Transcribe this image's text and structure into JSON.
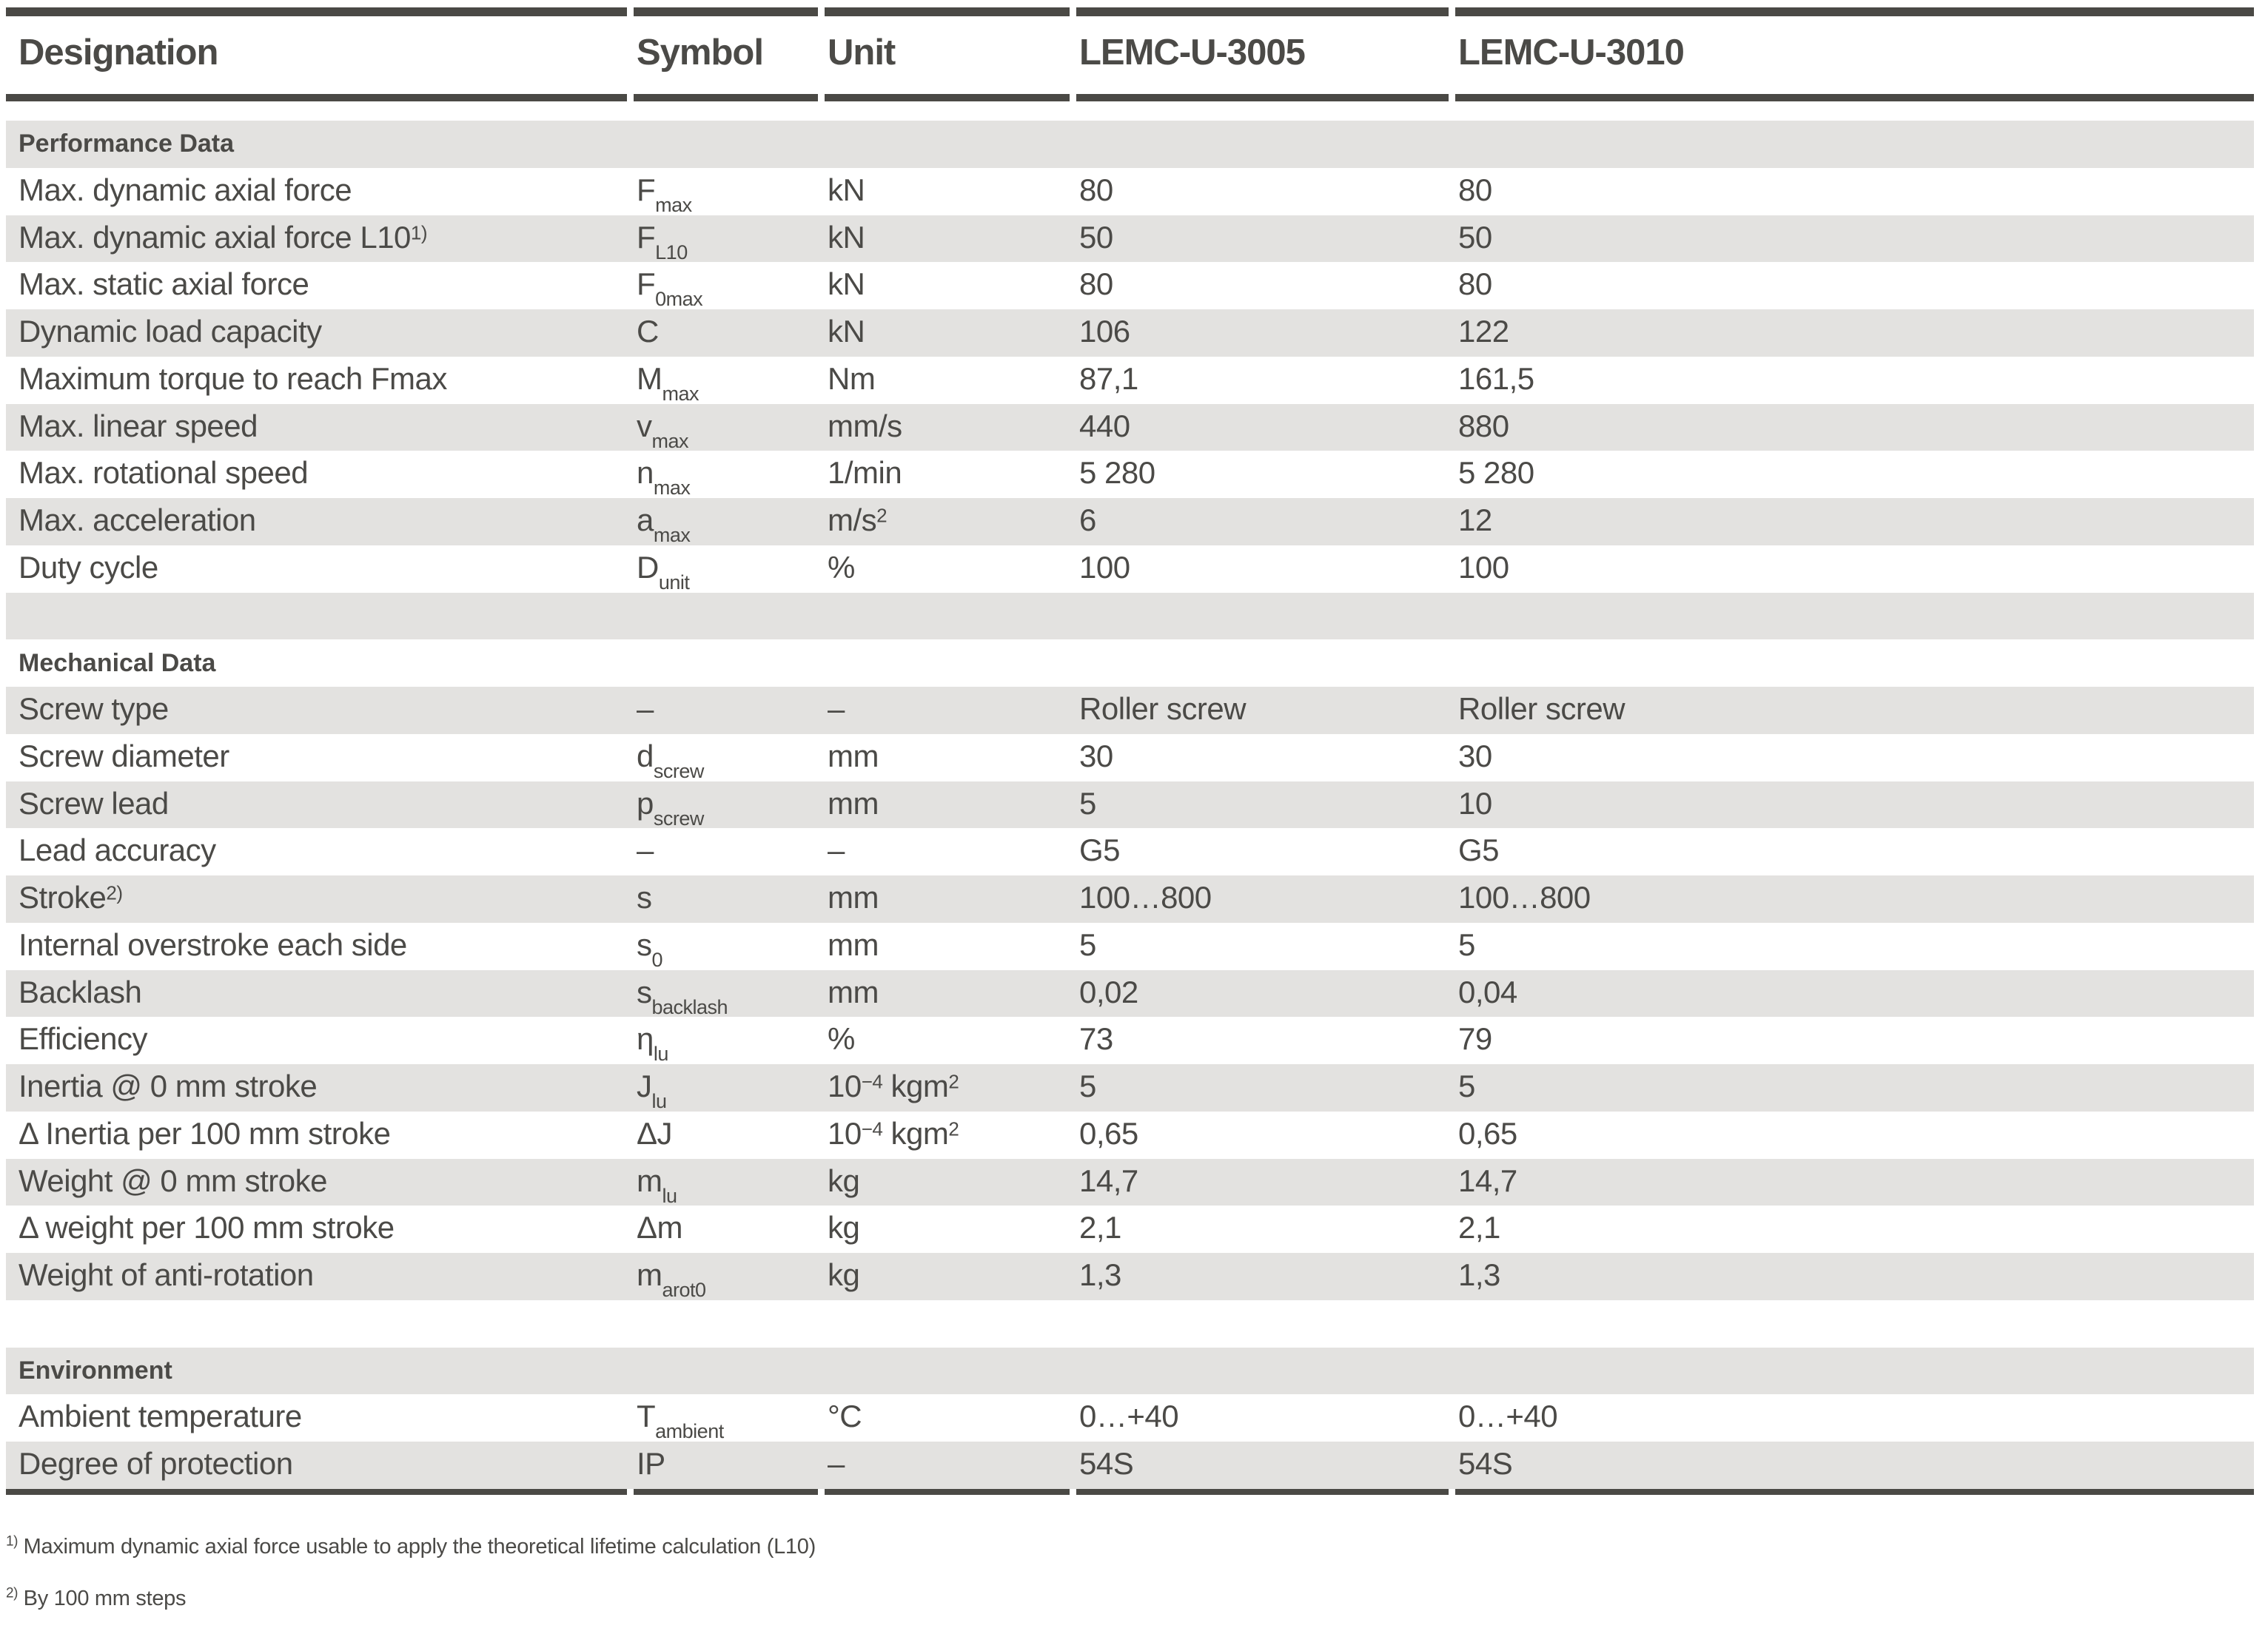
{
  "colors": {
    "rule_dark": "#4a4945",
    "row_stripe": "#e3e2e0",
    "text": "#4b4a47"
  },
  "table": {
    "columns": [
      "Designation",
      "Symbol",
      "Unit",
      "LEMC-U-3005",
      "LEMC-U-3010"
    ],
    "sections": [
      {
        "title": "Performance Data",
        "rows": [
          {
            "designation": [
              "Max. dynamic axial force"
            ],
            "symbol": [
              "F",
              {
                "sub": "max"
              }
            ],
            "unit": [
              "kN"
            ],
            "v1": [
              "80"
            ],
            "v2": [
              "80"
            ]
          },
          {
            "designation": [
              "Max. dynamic axial force L10",
              {
                "sup": "1)"
              }
            ],
            "symbol": [
              "F",
              {
                "sub": "L10"
              }
            ],
            "unit": [
              "kN"
            ],
            "v1": [
              "50"
            ],
            "v2": [
              "50"
            ]
          },
          {
            "designation": [
              "Max. static axial force"
            ],
            "symbol": [
              "F",
              {
                "sub": "0max"
              }
            ],
            "unit": [
              "kN"
            ],
            "v1": [
              "80"
            ],
            "v2": [
              "80"
            ]
          },
          {
            "designation": [
              "Dynamic load capacity"
            ],
            "symbol": [
              "C"
            ],
            "unit": [
              "kN"
            ],
            "v1": [
              "106"
            ],
            "v2": [
              "122"
            ]
          },
          {
            "designation": [
              "Maximum torque to reach Fmax"
            ],
            "symbol": [
              "M",
              {
                "sub": "max"
              }
            ],
            "unit": [
              "Nm"
            ],
            "v1": [
              "87,1"
            ],
            "v2": [
              "161,5"
            ]
          },
          {
            "designation": [
              "Max. linear speed"
            ],
            "symbol": [
              "v",
              {
                "sub": "max"
              }
            ],
            "unit": [
              "mm/s"
            ],
            "v1": [
              "440"
            ],
            "v2": [
              "880"
            ]
          },
          {
            "designation": [
              "Max. rotational speed"
            ],
            "symbol": [
              "n",
              {
                "sub": "max"
              }
            ],
            "unit": [
              "1/min"
            ],
            "v1": [
              "5 280"
            ],
            "v2": [
              "5 280"
            ]
          },
          {
            "designation": [
              "Max. acceleration"
            ],
            "symbol": [
              "a",
              {
                "sub": "max"
              }
            ],
            "unit": [
              "m/s",
              {
                "sup": "2"
              }
            ],
            "v1": [
              "6"
            ],
            "v2": [
              "12"
            ]
          },
          {
            "designation": [
              "Duty cycle"
            ],
            "symbol": [
              "D",
              {
                "sub": "unit"
              }
            ],
            "unit": [
              "%"
            ],
            "v1": [
              "100"
            ],
            "v2": [
              "100"
            ]
          }
        ]
      },
      {
        "title": "Mechanical Data",
        "rows": [
          {
            "designation": [
              "Screw type"
            ],
            "symbol": [
              "–"
            ],
            "unit": [
              "–"
            ],
            "v1": [
              "Roller screw"
            ],
            "v2": [
              "Roller screw"
            ]
          },
          {
            "designation": [
              "Screw diameter"
            ],
            "symbol": [
              "d",
              {
                "sub": "screw"
              }
            ],
            "unit": [
              "mm"
            ],
            "v1": [
              "30"
            ],
            "v2": [
              "30"
            ]
          },
          {
            "designation": [
              "Screw lead"
            ],
            "symbol": [
              "p",
              {
                "sub": "screw"
              }
            ],
            "unit": [
              "mm"
            ],
            "v1": [
              "5"
            ],
            "v2": [
              "10"
            ]
          },
          {
            "designation": [
              "Lead accuracy"
            ],
            "symbol": [
              "–"
            ],
            "unit": [
              "–"
            ],
            "v1": [
              "G5"
            ],
            "v2": [
              "G5"
            ]
          },
          {
            "designation": [
              "Stroke",
              {
                "sup": "2)"
              }
            ],
            "symbol": [
              "s"
            ],
            "unit": [
              "mm"
            ],
            "v1": [
              "100…800"
            ],
            "v2": [
              "100…800"
            ]
          },
          {
            "designation": [
              "Internal overstroke each side"
            ],
            "symbol": [
              "s",
              {
                "sub": "0"
              }
            ],
            "unit": [
              "mm"
            ],
            "v1": [
              "5"
            ],
            "v2": [
              "5"
            ]
          },
          {
            "designation": [
              "Backlash"
            ],
            "symbol": [
              "s",
              {
                "sub": "backlash"
              }
            ],
            "unit": [
              "mm"
            ],
            "v1": [
              "0,02"
            ],
            "v2": [
              "0,04"
            ]
          },
          {
            "designation": [
              "Efficiency"
            ],
            "symbol": [
              "η",
              {
                "sub": "lu"
              }
            ],
            "unit": [
              "%"
            ],
            "v1": [
              "73"
            ],
            "v2": [
              "79"
            ]
          },
          {
            "designation": [
              "Inertia @ 0 mm stroke"
            ],
            "symbol": [
              "J",
              {
                "sub": "lu"
              }
            ],
            "unit": [
              "10",
              {
                "sup": "−4"
              },
              " kgm",
              {
                "sup": "2"
              }
            ],
            "v1": [
              "5"
            ],
            "v2": [
              "5"
            ]
          },
          {
            "designation": [
              "Δ Inertia per 100 mm stroke"
            ],
            "symbol": [
              "ΔJ"
            ],
            "unit": [
              "10",
              {
                "sup": "−4"
              },
              " kgm",
              {
                "sup": "2"
              }
            ],
            "v1": [
              "0,65"
            ],
            "v2": [
              "0,65"
            ]
          },
          {
            "designation": [
              "Weight @ 0 mm stroke"
            ],
            "symbol": [
              "m",
              {
                "sub": "lu"
              }
            ],
            "unit": [
              "kg"
            ],
            "v1": [
              "14,7"
            ],
            "v2": [
              "14,7"
            ]
          },
          {
            "designation": [
              "Δ weight per 100 mm stroke"
            ],
            "symbol": [
              "Δm"
            ],
            "unit": [
              "kg"
            ],
            "v1": [
              "2,1"
            ],
            "v2": [
              "2,1"
            ]
          },
          {
            "designation": [
              "Weight of anti-rotation"
            ],
            "symbol": [
              "m",
              {
                "sub": "arot0"
              }
            ],
            "unit": [
              "kg"
            ],
            "v1": [
              "1,3"
            ],
            "v2": [
              "1,3"
            ]
          }
        ]
      },
      {
        "title": "Environment",
        "rows": [
          {
            "designation": [
              "Ambient temperature"
            ],
            "symbol": [
              "T",
              {
                "sub": "ambient"
              }
            ],
            "unit": [
              "°C"
            ],
            "v1": [
              "0…+40"
            ],
            "v2": [
              "0…+40"
            ]
          },
          {
            "designation": [
              "Degree of protection"
            ],
            "symbol": [
              "IP"
            ],
            "unit": [
              "–"
            ],
            "v1": [
              "54S"
            ],
            "v2": [
              "54S"
            ]
          }
        ]
      }
    ],
    "footnotes": [
      {
        "marker": "1)",
        "text": " Maximum dynamic axial force usable to apply the theoretical lifetime calculation (L10)"
      },
      {
        "marker": "2)",
        "text": " By 100 mm steps"
      }
    ]
  }
}
